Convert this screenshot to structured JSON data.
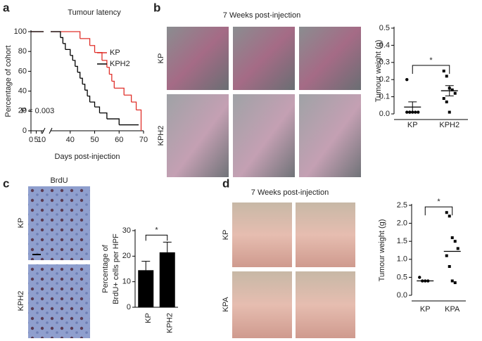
{
  "panel_labels": [
    "a",
    "b",
    "c",
    "d"
  ],
  "photos": [
    {
      "title": "7 Weeks post-injection",
      "rows": [
        "KP",
        "KPH2"
      ]
    },
    {
      "title": "BrdU",
      "rows": [
        "KP",
        "KPH2"
      ]
    },
    {
      "title": "7 Weeks post-injection",
      "rows": [
        "KP",
        "KPA"
      ]
    }
  ],
  "chart_data": [
    {
      "type": "survival",
      "title": "Tumour latency",
      "xlabel": "Days post-injection",
      "ylabel": "Percentage of  cohort",
      "annotation": "P = 0.003",
      "xlim": [
        0,
        70
      ],
      "xticks": [
        0,
        5,
        10,
        40,
        50,
        60,
        70
      ],
      "xbreak": [
        12,
        32
      ],
      "ylim": [
        0,
        100
      ],
      "yticks": [
        0,
        20,
        40,
        60,
        80,
        100
      ],
      "legend": "upper right",
      "series": [
        {
          "name": "KP",
          "color": "#e0302a",
          "x": [
            0,
            44,
            48,
            50,
            53,
            55,
            56,
            57,
            58,
            62,
            65,
            67,
            69
          ],
          "values": [
            100,
            93,
            86,
            79,
            71,
            64,
            57,
            50,
            43,
            36,
            29,
            21,
            0
          ]
        },
        {
          "name": "KPH2",
          "color": "#000000",
          "x": [
            0,
            36,
            37,
            38,
            40,
            41,
            42,
            43,
            44,
            45,
            46,
            47,
            48,
            50,
            52,
            55,
            60,
            68
          ],
          "values": [
            100,
            94,
            88,
            82,
            76,
            71,
            65,
            59,
            53,
            47,
            41,
            35,
            29,
            24,
            18,
            12,
            6,
            6
          ]
        }
      ]
    },
    {
      "type": "dot",
      "ylabel": "Tumour weight (g)",
      "categories": [
        "KP",
        "KPH2"
      ],
      "markers": [
        "circle",
        "square"
      ],
      "significance": "*",
      "ylim": [
        0,
        0.5
      ],
      "yticks": [
        {
          "value": 0,
          "label": "0.0"
        },
        0.1,
        0.2,
        0.3,
        0.4,
        0.5
      ],
      "points": [
        [
          0.2,
          0.01,
          0.01,
          0.01,
          0.01,
          0.01,
          0.01
        ],
        [
          0.25,
          0.22,
          0.15,
          0.14,
          0.12,
          0.09,
          0.07,
          0.01
        ]
      ],
      "mean": [
        0.04,
        0.135
      ],
      "error": [
        0.03,
        0.03
      ]
    },
    {
      "type": "bar",
      "ylabel": [
        "Percentage of",
        "BrdU+ cells per HPF"
      ],
      "categories": [
        "KP",
        "KPH2"
      ],
      "color": "#000000",
      "significance": "*",
      "ylim": [
        0,
        30
      ],
      "yticks": [
        0,
        10,
        20,
        30
      ],
      "values": [
        14.5,
        21.5
      ],
      "error": [
        3.5,
        4
      ]
    },
    {
      "type": "dot",
      "ylabel": "Tumour weight (g)",
      "categories": [
        "KP",
        "KPA"
      ],
      "markers": [
        "circle",
        "square"
      ],
      "significance": "*",
      "ylim": [
        0,
        2.5
      ],
      "yticks": [
        {
          "value": 0,
          "label": "0.0"
        },
        0.5,
        {
          "value": 1,
          "label": "1.0"
        },
        1.5,
        {
          "value": 2,
          "label": "2.0"
        },
        2.5
      ],
      "points": [
        [
          0.5,
          0.4,
          0.4,
          0.4
        ],
        [
          2.3,
          2.2,
          1.6,
          1.5,
          1.3,
          1.1,
          0.8,
          0.4,
          0.35
        ]
      ],
      "mean": [
        0.4,
        1.22
      ]
    }
  ]
}
